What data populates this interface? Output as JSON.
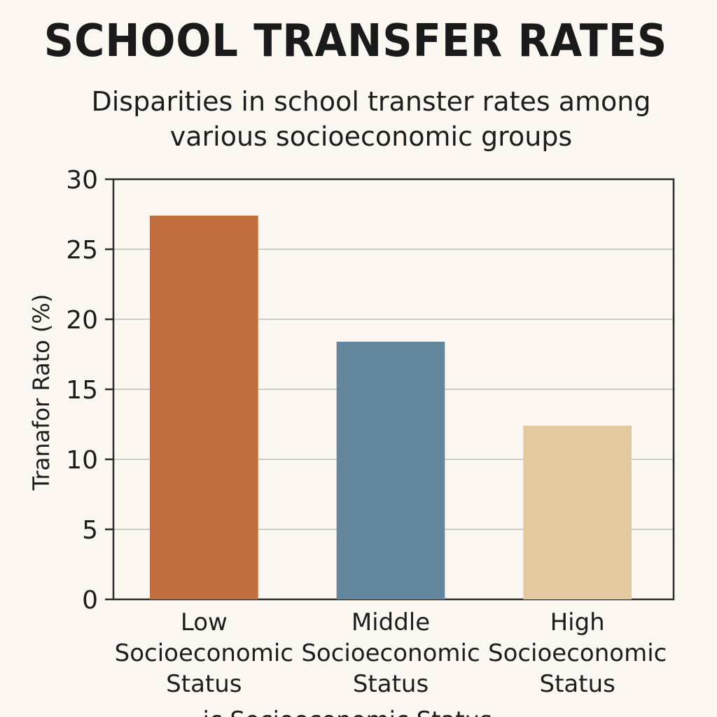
{
  "chart_data": {
    "type": "bar",
    "title": "SCHOOL TRANSFER RATES",
    "subtitle": "Disparities in school transter rates among various socioeconomic groups",
    "ylabel": "Tranafor Rato (%)",
    "xlabel": "...ic Socioeconomic Status",
    "categories": [
      [
        "Low",
        "Socioeconomic",
        "Status"
      ],
      [
        "Middle",
        "Socioeconomic",
        "Status"
      ],
      [
        "High",
        "Socioeconomic",
        "Status"
      ]
    ],
    "values": [
      27.4,
      18.4,
      12.4
    ],
    "colors": [
      "#c06d3f",
      "#64879d",
      "#e3c9a0"
    ],
    "ylim": [
      0,
      30
    ],
    "yticks": [
      0,
      5,
      10,
      15,
      20,
      25,
      30
    ],
    "grid": true
  }
}
